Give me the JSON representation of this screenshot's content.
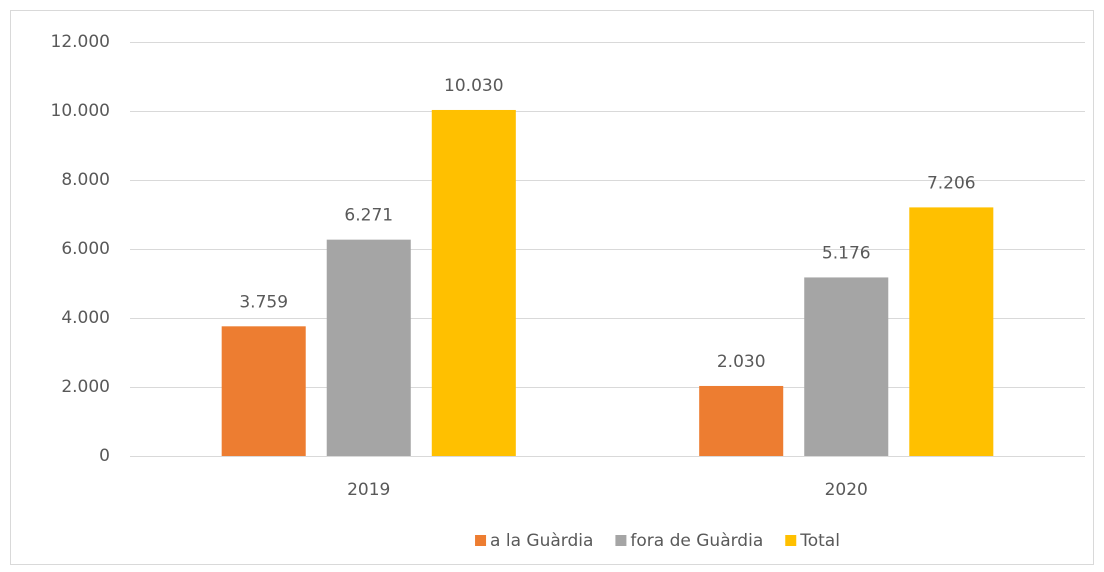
{
  "chart_data": {
    "type": "bar",
    "categories": [
      "2019",
      "2020"
    ],
    "series": [
      {
        "name": "a la Guàrdia",
        "color": "#ed7d31",
        "values": [
          3759,
          2030
        ],
        "value_labels": [
          "3.759",
          "2.030"
        ]
      },
      {
        "name": "fora de Guàrdia",
        "color": "#a5a5a5",
        "values": [
          6271,
          5176
        ],
        "value_labels": [
          "6.271",
          "5.176"
        ]
      },
      {
        "name": "Total",
        "color": "#ffc000",
        "values": [
          10030,
          7206
        ],
        "value_labels": [
          "10.030",
          "7.206"
        ]
      }
    ],
    "ylim": [
      0,
      12000
    ],
    "yticks": [
      0,
      {
        "value": 2000,
        "label": "2.000"
      },
      {
        "value": 4000,
        "label": "4.000"
      },
      {
        "value": 6000,
        "label": "6.000"
      },
      {
        "value": 8000,
        "label": "8.000"
      },
      {
        "value": 10000,
        "label": "10.000"
      },
      {
        "value": 12000,
        "label": "12.000"
      }
    ],
    "grid": true,
    "legend": "bottom"
  }
}
